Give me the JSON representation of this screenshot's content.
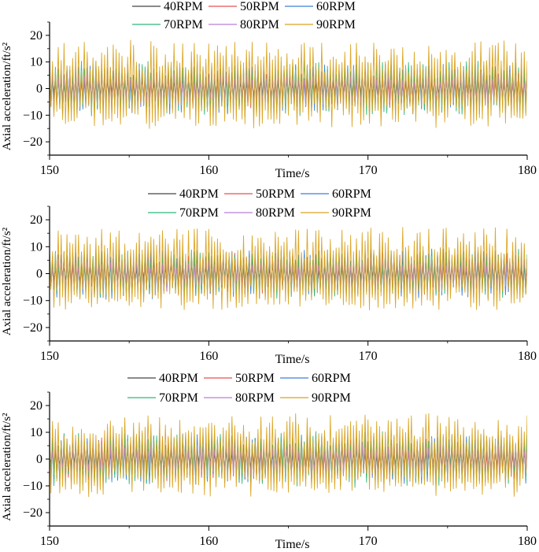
{
  "chart_data": [
    {
      "type": "line",
      "title": "",
      "xlabel": "Time/s",
      "ylabel": "Axial acceleration/ft/s²",
      "xlim": [
        150,
        180
      ],
      "ylim": [
        -25,
        25
      ],
      "xticks": [
        "150",
        "160",
        "170",
        "180"
      ],
      "yticks": [
        "-20",
        "-10",
        "0",
        "10",
        "20"
      ],
      "series": [
        {
          "name": "40RPM",
          "color": "#444444",
          "amplitude": 5
        },
        {
          "name": "50RPM",
          "color": "#e8504f",
          "amplitude": 7
        },
        {
          "name": "60RPM",
          "color": "#3d7fd9",
          "amplitude": 9
        },
        {
          "name": "70RPM",
          "color": "#2fb67a",
          "amplitude": 10
        },
        {
          "name": "80RPM",
          "color": "#b77fd6",
          "amplitude": 6
        },
        {
          "name": "90RPM",
          "color": "#d9a21f",
          "amplitude": 17
        }
      ]
    },
    {
      "type": "line",
      "title": "",
      "xlabel": "Time/s",
      "ylabel": "Axial acceleration/ft/s²",
      "xlim": [
        150,
        180
      ],
      "ylim": [
        -25,
        25
      ],
      "xticks": [
        "150",
        "160",
        "170",
        "180"
      ],
      "yticks": [
        "-20",
        "-10",
        "0",
        "10",
        "20"
      ],
      "series": [
        {
          "name": "40RPM",
          "color": "#444444",
          "amplitude": 5
        },
        {
          "name": "50RPM",
          "color": "#e8504f",
          "amplitude": 8
        },
        {
          "name": "60RPM",
          "color": "#3d7fd9",
          "amplitude": 9
        },
        {
          "name": "70RPM",
          "color": "#2fb67a",
          "amplitude": 9
        },
        {
          "name": "80RPM",
          "color": "#b77fd6",
          "amplitude": 6
        },
        {
          "name": "90RPM",
          "color": "#d9a21f",
          "amplitude": 16
        }
      ]
    },
    {
      "type": "line",
      "title": "",
      "xlabel": "Time/s",
      "ylabel": "Axial acceleration/ft/s²",
      "xlim": [
        150,
        180
      ],
      "ylim": [
        -25,
        25
      ],
      "xticks": [
        "150",
        "160",
        "170",
        "180"
      ],
      "yticks": [
        "-20",
        "-10",
        "0",
        "10",
        "20"
      ],
      "series": [
        {
          "name": "40RPM",
          "color": "#444444",
          "amplitude": 5
        },
        {
          "name": "50RPM",
          "color": "#e8504f",
          "amplitude": 8
        },
        {
          "name": "60RPM",
          "color": "#3d7fd9",
          "amplitude": 9
        },
        {
          "name": "70RPM",
          "color": "#2fb67a",
          "amplitude": 10
        },
        {
          "name": "80RPM",
          "color": "#b77fd6",
          "amplitude": 6
        },
        {
          "name": "90RPM",
          "color": "#d9a21f",
          "amplitude": 16
        }
      ]
    }
  ]
}
